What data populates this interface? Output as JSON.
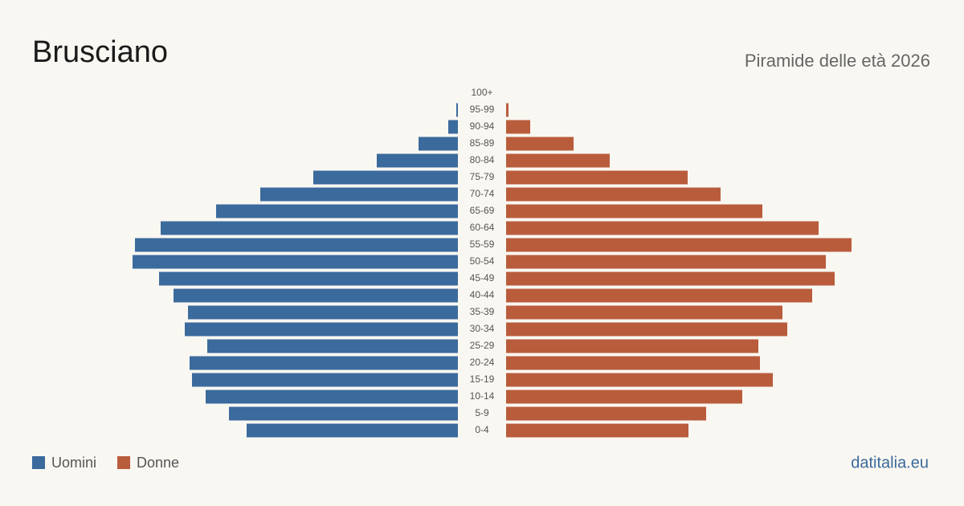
{
  "chart_data": {
    "type": "pyramid",
    "title": "Brusciano",
    "subtitle": "Piramide delle età 2026",
    "source": "datitalia.eu",
    "categories": [
      "100+",
      "95-99",
      "90-94",
      "85-89",
      "80-84",
      "75-79",
      "70-74",
      "65-69",
      "60-64",
      "55-59",
      "50-54",
      "45-49",
      "40-44",
      "35-39",
      "30-34",
      "25-29",
      "20-24",
      "15-19",
      "10-14",
      "5-9",
      "0-4"
    ],
    "series": [
      {
        "name": "Uomini",
        "color": "#3b6a9c",
        "values": [
          0,
          2,
          12,
          49,
          101,
          180,
          246,
          301,
          370,
          402,
          405,
          372,
          354,
          336,
          340,
          312,
          334,
          331,
          314,
          285,
          263
        ]
      },
      {
        "name": "Donne",
        "color": "#b95c3c",
        "values": [
          0,
          3,
          30,
          84,
          129,
          226,
          267,
          319,
          389,
          430,
          398,
          409,
          381,
          344,
          350,
          314,
          316,
          332,
          294,
          249,
          227
        ]
      }
    ]
  }
}
